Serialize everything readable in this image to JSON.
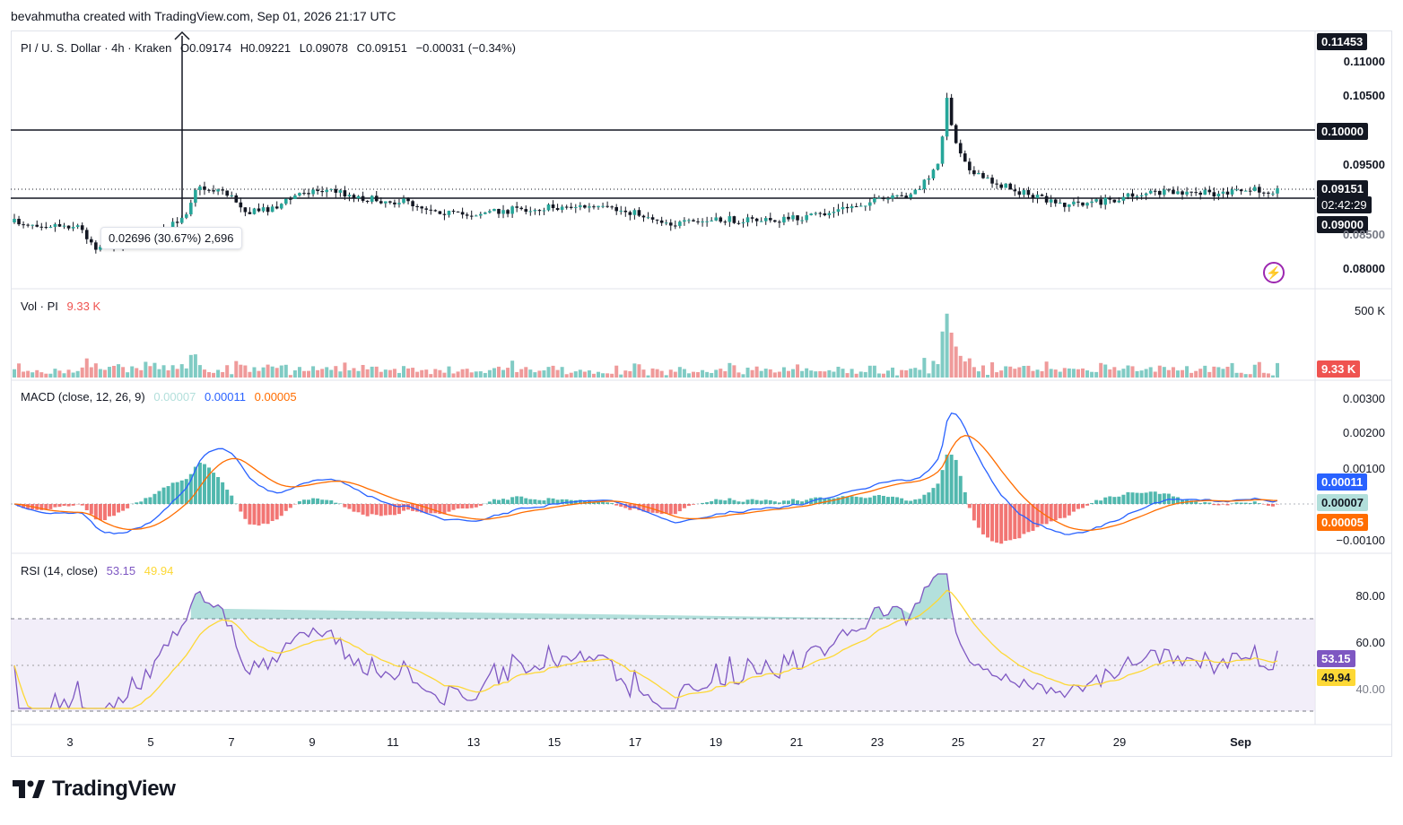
{
  "header": {
    "attribution": "bevahmutha created with TradingView.com, Sep 01, 2026 21:17 UTC"
  },
  "symbol": {
    "name": "PI / U. S. Dollar · 4h · Kraken",
    "open": "O0.09174",
    "high": "H0.09221",
    "low": "L0.09078",
    "close": "C0.09151",
    "change": "−0.00031 (−0.34%)"
  },
  "price_axis": {
    "labels": [
      "0.11000",
      "0.10500",
      "0.09500",
      "0.08500",
      "0.08000"
    ],
    "high_tag": "0.11453",
    "line_upper_tag": "0.10000",
    "current_tag": "0.09151",
    "countdown": "02:42:29",
    "line_lower_tag": "0.09000"
  },
  "measure_tooltip": "0.02696 (30.67%) 2,696",
  "volume": {
    "legend_title": "Vol · PI",
    "legend_value": "9.33 K",
    "axis_label": "500 K",
    "tag": "9.33 K"
  },
  "macd": {
    "legend_title": "MACD (close, 12, 26, 9)",
    "hist_value": "0.00007",
    "macd_value": "0.00011",
    "signal_value": "0.00005",
    "axis_labels": [
      "0.00300",
      "0.00200",
      "0.00100",
      "−0.00100"
    ],
    "tag_macd": "0.00011",
    "tag_hist": "0.00007",
    "tag_signal": "0.00005"
  },
  "rsi": {
    "legend_title": "RSI (14, close)",
    "rsi_value": "53.15",
    "ma_value": "49.94",
    "axis_labels": [
      "80.00",
      "60.00",
      "40.00"
    ],
    "tag_rsi": "53.15",
    "tag_ma": "49.94"
  },
  "time_axis": [
    "3",
    "5",
    "7",
    "9",
    "11",
    "13",
    "15",
    "17",
    "19",
    "21",
    "23",
    "25",
    "27",
    "29",
    "Sep"
  ],
  "brand": {
    "name": "TradingView"
  },
  "colors": {
    "up": "#26a69a",
    "down": "#ef5350",
    "candle_up_body": "#ffffff",
    "candle_dark": "#131722",
    "macd_line": "#2962ff",
    "signal_line": "#ff6d00",
    "rsi_line": "#7e57c2",
    "rsi_ma": "#fdd835",
    "rsi_band": "#ede7f6"
  }
}
